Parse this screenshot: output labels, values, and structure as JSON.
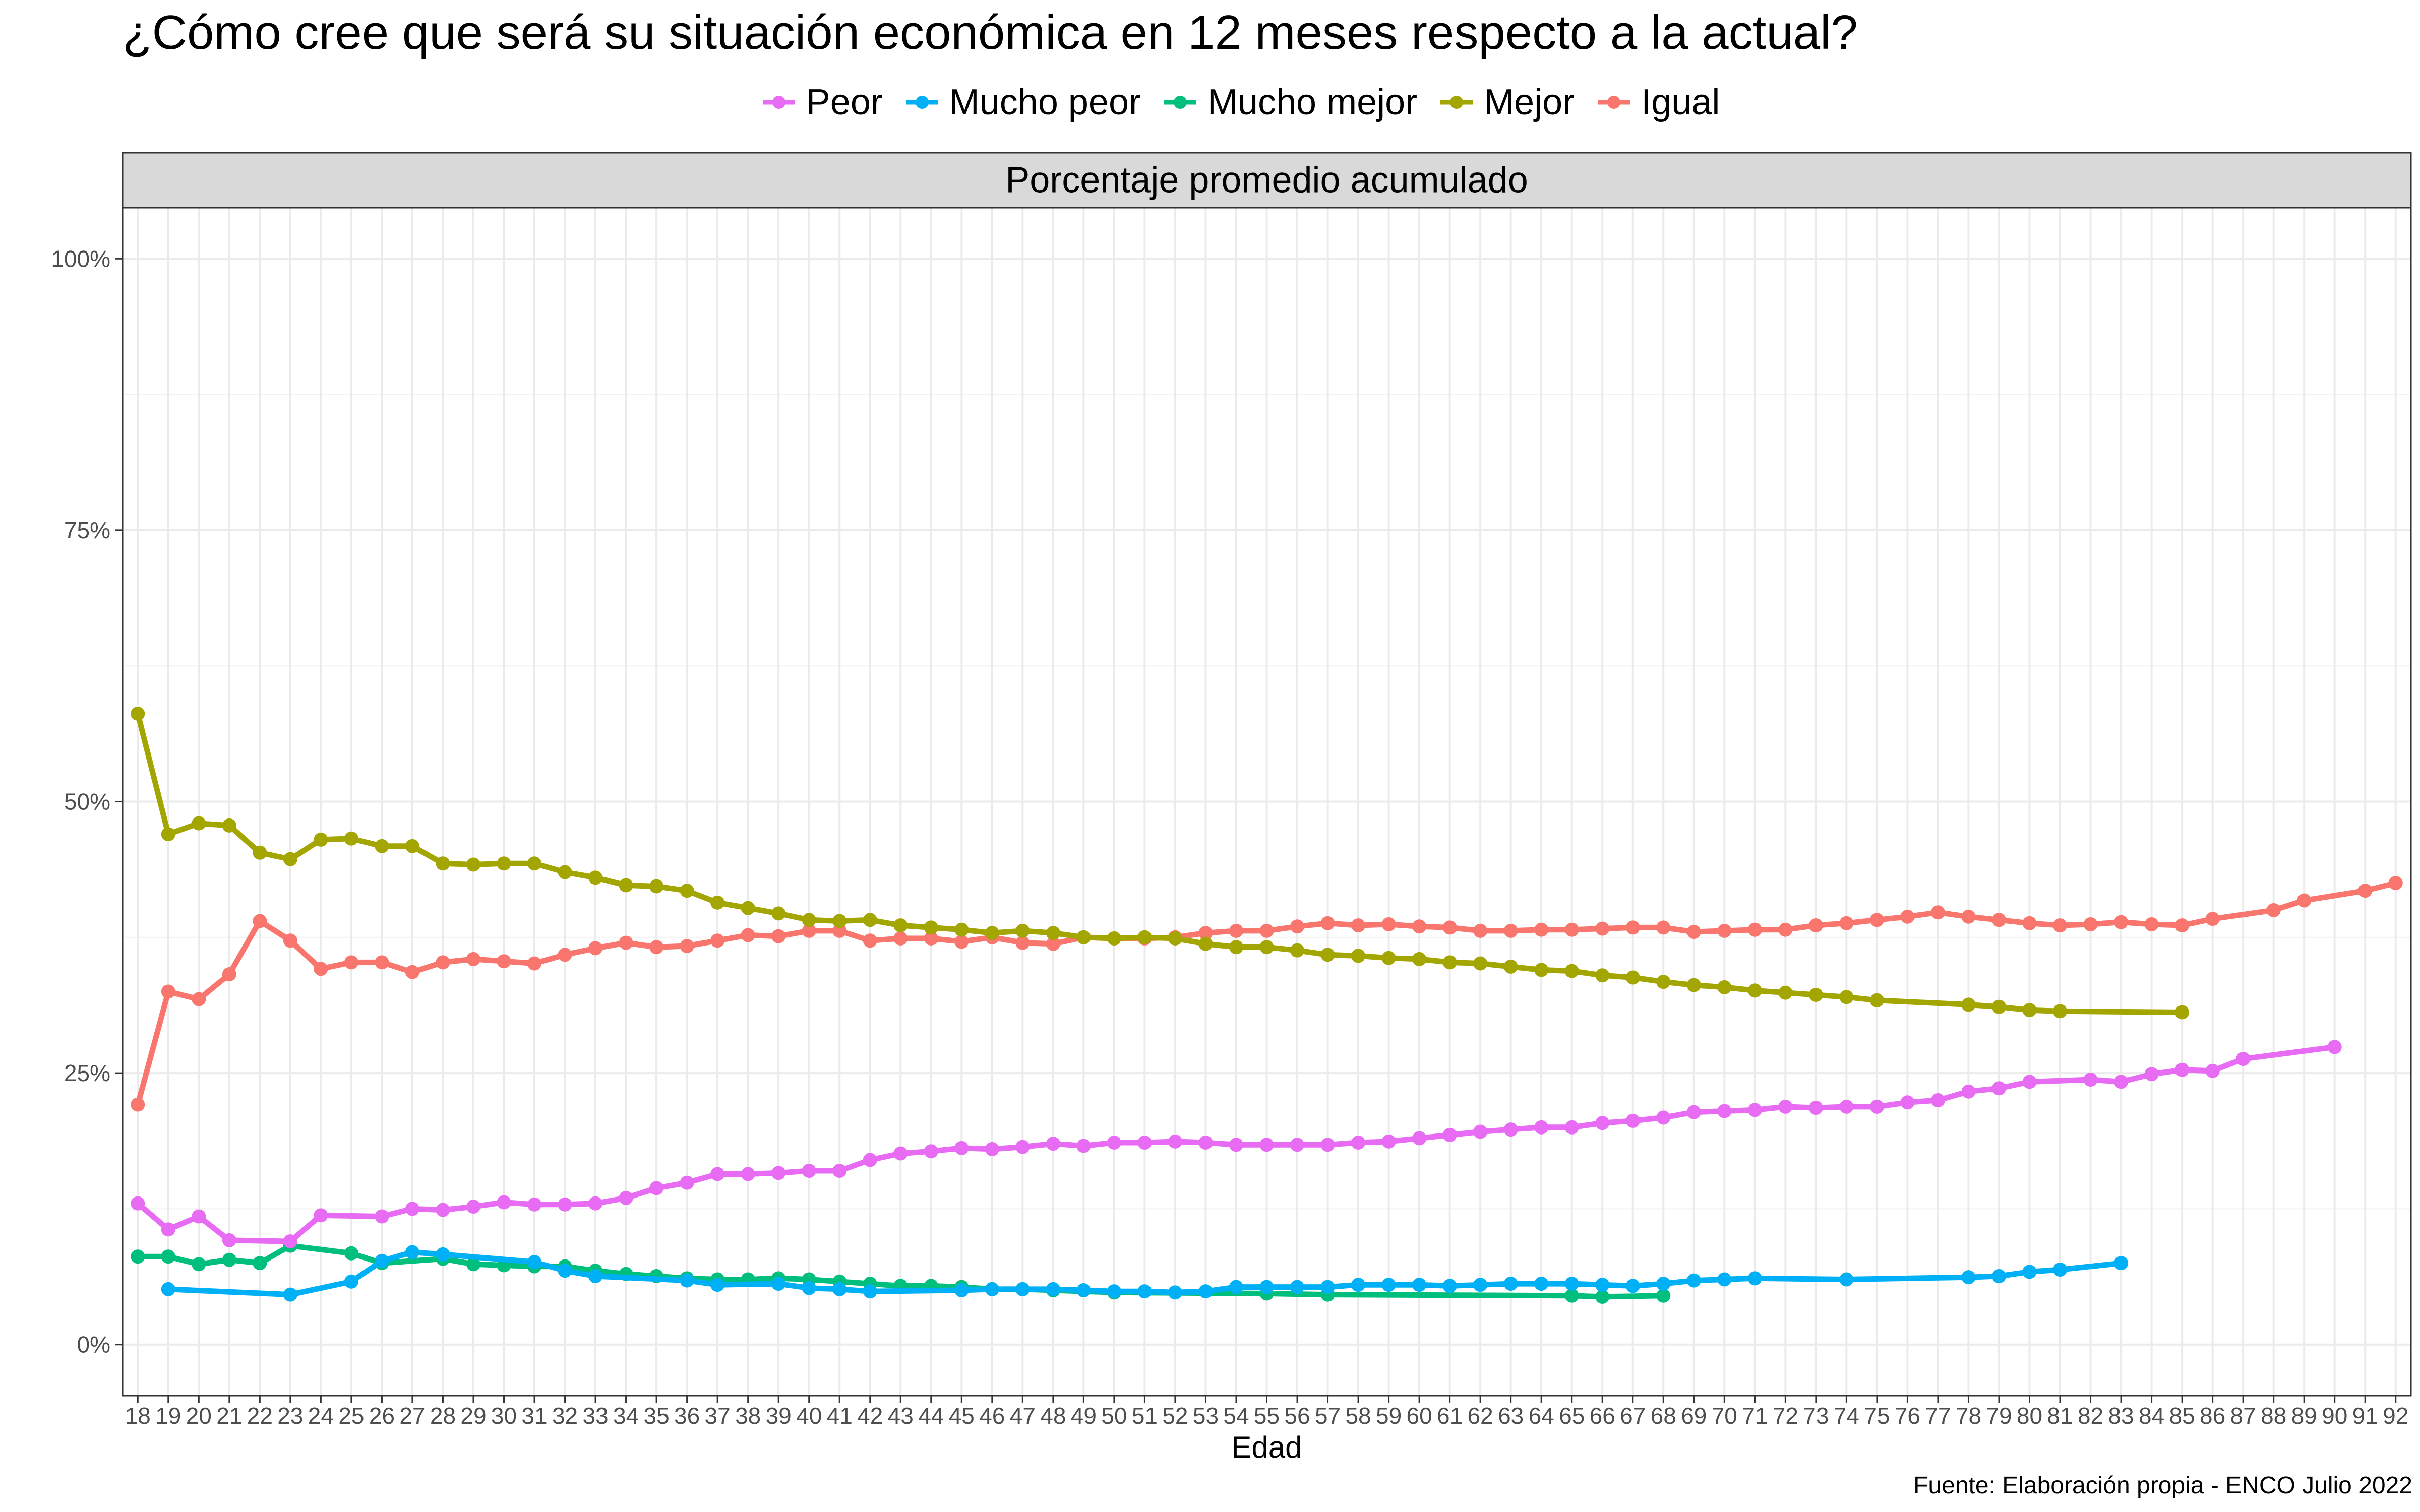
{
  "title": "¿Cómo cree que será su situación económica en 12 meses respecto a la actual?",
  "caption": "Fuente: Elaboración propia - ENCO Julio 2022",
  "legend": [
    {
      "label": "Peor",
      "color": "#E76BF3"
    },
    {
      "label": "Mucho peor",
      "color": "#00B0F6"
    },
    {
      "label": "Mucho mejor",
      "color": "#00BF7D"
    },
    {
      "label": "Mejor",
      "color": "#A3A500"
    },
    {
      "label": "Igual",
      "color": "#F8766D"
    }
  ],
  "chart_data": {
    "type": "line",
    "title": "¿Cómo cree que será su situación económica en 12 meses respecto a la actual?",
    "facet_label": "Porcentaje promedio acumulado",
    "xlabel": "Edad",
    "ylabel": "",
    "x_ticks": [
      18,
      19,
      20,
      21,
      22,
      23,
      24,
      25,
      26,
      27,
      28,
      29,
      30,
      31,
      32,
      33,
      34,
      35,
      36,
      37,
      38,
      39,
      40,
      41,
      42,
      43,
      44,
      45,
      46,
      47,
      48,
      49,
      50,
      51,
      52,
      53,
      54,
      55,
      56,
      57,
      58,
      59,
      60,
      61,
      62,
      63,
      64,
      65,
      66,
      67,
      68,
      69,
      70,
      71,
      72,
      73,
      74,
      75,
      76,
      77,
      78,
      79,
      80,
      81,
      82,
      83,
      84,
      85,
      86,
      87,
      88,
      89,
      90,
      91,
      92
    ],
    "y_ticks": [
      0,
      25,
      50,
      75,
      100
    ],
    "y_tick_labels": [
      "0%",
      "25%",
      "50%",
      "75%",
      "100%"
    ],
    "xlim": [
      17.5,
      92.5
    ],
    "ylim": [
      -4.7,
      104.7
    ],
    "grid": true,
    "legend_position": "top",
    "series": [
      {
        "name": "Peor",
        "color": "#E76BF3",
        "x": [
          18,
          19,
          20,
          21,
          23,
          24,
          26,
          27,
          28,
          29,
          30,
          31,
          32,
          33,
          34,
          35,
          36,
          37,
          38,
          39,
          40,
          41,
          42,
          43,
          44,
          45,
          46,
          47,
          48,
          49,
          50,
          51,
          52,
          53,
          54,
          55,
          56,
          57,
          58,
          59,
          60,
          61,
          62,
          63,
          64,
          65,
          66,
          67,
          68,
          69,
          70,
          71,
          72,
          73,
          74,
          75,
          76,
          77,
          78,
          79,
          80,
          82,
          83,
          84,
          85,
          86,
          87,
          90
        ],
        "y": [
          13.0,
          10.6,
          11.8,
          9.6,
          9.5,
          11.9,
          11.8,
          12.5,
          12.4,
          12.7,
          13.1,
          12.9,
          12.9,
          13.0,
          13.5,
          14.4,
          14.9,
          15.7,
          15.7,
          15.8,
          16.0,
          16.0,
          17.0,
          17.6,
          17.8,
          18.1,
          18.0,
          18.2,
          18.5,
          18.3,
          18.6,
          18.6,
          18.7,
          18.6,
          18.4,
          18.4,
          18.4,
          18.4,
          18.6,
          18.7,
          19.0,
          19.3,
          19.6,
          19.8,
          20.0,
          20.0,
          20.4,
          20.6,
          20.9,
          21.4,
          21.5,
          21.6,
          21.9,
          21.8,
          21.9,
          21.9,
          22.3,
          22.5,
          23.3,
          23.6,
          24.2,
          24.4,
          24.2,
          24.9,
          25.3,
          25.2,
          26.3,
          27.4
        ]
      },
      {
        "name": "Mucho peor",
        "color": "#00B0F6",
        "x": [
          19,
          23,
          25,
          26,
          27,
          28,
          31,
          32,
          33,
          36,
          37,
          39,
          40,
          41,
          42,
          45,
          46,
          47,
          48,
          49,
          50,
          51,
          52,
          53,
          54,
          55,
          56,
          57,
          58,
          59,
          60,
          61,
          62,
          63,
          64,
          65,
          66,
          67,
          68,
          69,
          70,
          71,
          74,
          78,
          79,
          80,
          81,
          83
        ],
        "y": [
          5.1,
          4.6,
          5.8,
          7.7,
          8.5,
          8.3,
          7.6,
          6.8,
          6.3,
          5.9,
          5.5,
          5.6,
          5.2,
          5.1,
          4.9,
          5.0,
          5.1,
          5.1,
          5.1,
          5.0,
          4.9,
          4.9,
          4.8,
          4.9,
          5.3,
          5.3,
          5.3,
          5.3,
          5.5,
          5.5,
          5.5,
          5.4,
          5.5,
          5.6,
          5.6,
          5.6,
          5.5,
          5.4,
          5.6,
          5.9,
          6.0,
          6.1,
          6.0,
          6.2,
          6.3,
          6.7,
          6.9,
          7.5
        ]
      },
      {
        "name": "Mucho mejor",
        "color": "#00BF7D",
        "x": [
          18,
          19,
          20,
          21,
          22,
          23,
          25,
          26,
          28,
          29,
          30,
          31,
          32,
          33,
          34,
          35,
          36,
          37,
          38,
          39,
          40,
          41,
          42,
          43,
          44,
          45,
          46,
          47,
          48,
          50,
          55,
          57,
          65,
          66,
          68
        ],
        "y": [
          8.1,
          8.1,
          7.4,
          7.8,
          7.5,
          9.1,
          8.4,
          7.5,
          7.9,
          7.4,
          7.3,
          7.2,
          7.2,
          6.8,
          6.5,
          6.3,
          6.1,
          6.0,
          6.0,
          6.1,
          6.0,
          5.8,
          5.6,
          5.4,
          5.4,
          5.3,
          5.1,
          5.1,
          5.0,
          4.8,
          4.7,
          4.6,
          4.5,
          4.4,
          4.5
        ]
      },
      {
        "name": "Mejor",
        "color": "#A3A500",
        "x": [
          18,
          19,
          20,
          21,
          22,
          23,
          24,
          25,
          26,
          27,
          28,
          29,
          30,
          31,
          32,
          33,
          34,
          35,
          36,
          37,
          38,
          39,
          40,
          41,
          42,
          43,
          44,
          45,
          46,
          47,
          48,
          49,
          50,
          51,
          52,
          53,
          54,
          55,
          56,
          57,
          58,
          59,
          60,
          61,
          62,
          63,
          64,
          65,
          66,
          67,
          68,
          69,
          70,
          71,
          72,
          73,
          74,
          75,
          78,
          79,
          80,
          81,
          85
        ],
        "y": [
          58.1,
          47.0,
          48.0,
          47.8,
          45.3,
          44.7,
          46.5,
          46.6,
          45.9,
          45.9,
          44.3,
          44.2,
          44.3,
          44.3,
          43.5,
          43.0,
          42.3,
          42.2,
          41.8,
          40.7,
          40.2,
          39.7,
          39.1,
          39.0,
          39.1,
          38.6,
          38.4,
          38.2,
          37.9,
          38.1,
          37.9,
          37.5,
          37.4,
          37.5,
          37.4,
          36.9,
          36.6,
          36.6,
          36.3,
          35.9,
          35.8,
          35.6,
          35.5,
          35.2,
          35.1,
          34.8,
          34.5,
          34.4,
          34.0,
          33.8,
          33.4,
          33.1,
          32.9,
          32.6,
          32.4,
          32.2,
          32.0,
          31.7,
          31.3,
          31.1,
          30.8,
          30.7,
          30.6
        ]
      },
      {
        "name": "Igual",
        "color": "#F8766D",
        "x": [
          18,
          19,
          20,
          21,
          22,
          23,
          24,
          25,
          26,
          27,
          28,
          29,
          30,
          31,
          32,
          33,
          34,
          35,
          36,
          37,
          38,
          39,
          40,
          41,
          42,
          43,
          44,
          45,
          46,
          47,
          48,
          49,
          50,
          51,
          52,
          53,
          54,
          55,
          56,
          57,
          58,
          59,
          60,
          61,
          62,
          63,
          64,
          65,
          66,
          67,
          68,
          69,
          70,
          71,
          72,
          73,
          74,
          75,
          76,
          77,
          78,
          79,
          80,
          81,
          82,
          83,
          84,
          85,
          86,
          88,
          89,
          91,
          92
        ],
        "y": [
          22.1,
          32.5,
          31.8,
          34.1,
          39.0,
          37.2,
          34.6,
          35.2,
          35.2,
          34.3,
          35.2,
          35.5,
          35.3,
          35.1,
          35.9,
          36.5,
          37.0,
          36.6,
          36.7,
          37.2,
          37.7,
          37.6,
          38.1,
          38.1,
          37.2,
          37.4,
          37.4,
          37.1,
          37.5,
          37.0,
          36.9,
          37.5,
          37.4,
          37.4,
          37.5,
          37.9,
          38.1,
          38.1,
          38.5,
          38.8,
          38.6,
          38.7,
          38.5,
          38.4,
          38.1,
          38.1,
          38.2,
          38.2,
          38.3,
          38.4,
          38.4,
          38.0,
          38.1,
          38.2,
          38.2,
          38.6,
          38.8,
          39.1,
          39.4,
          39.8,
          39.4,
          39.1,
          38.8,
          38.6,
          38.7,
          38.9,
          38.7,
          38.6,
          39.2,
          40.0,
          40.9,
          41.8,
          42.5
        ]
      }
    ]
  }
}
